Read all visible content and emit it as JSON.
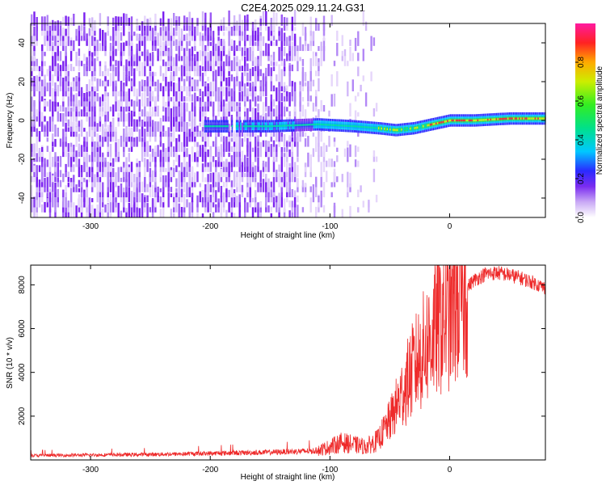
{
  "title": "C2E4.2025.029.11.24.G31",
  "chart_data": [
    {
      "type": "heatmap",
      "xlabel": "Height of straight line (km)",
      "ylabel": "Frequency (Hz)",
      "xlim": [
        -350,
        80
      ],
      "ylim": [
        -50,
        50
      ],
      "xticks": [
        -300,
        -200,
        -100,
        0
      ],
      "yticks": [
        -40,
        -20,
        0,
        20,
        40
      ],
      "colorbar": {
        "label": "Normalized spectral amplitude",
        "range": [
          0,
          1
        ],
        "ticks": [
          0.0,
          0.2,
          0.4,
          0.6,
          0.8
        ]
      },
      "ridge": {
        "description_points": [
          {
            "x": -200,
            "y": -3
          },
          {
            "x": -150,
            "y": -3
          },
          {
            "x": -110,
            "y": -2
          },
          {
            "x": -80,
            "y": -3
          },
          {
            "x": -60,
            "y": -4
          },
          {
            "x": -45,
            "y": -5
          },
          {
            "x": -30,
            "y": -4
          },
          {
            "x": -15,
            "y": -2
          },
          {
            "x": 0,
            "y": 0
          },
          {
            "x": 20,
            "y": 0
          },
          {
            "x": 50,
            "y": 1
          },
          {
            "x": 80,
            "y": 1
          }
        ]
      },
      "grid": false
    },
    {
      "type": "line",
      "xlabel": "Height of straight line (km)",
      "ylabel": "SNR (10 * v/v)",
      "xlim": [
        -350,
        80
      ],
      "ylim": [
        0,
        8900
      ],
      "xticks": [
        -300,
        -200,
        -100,
        0
      ],
      "yticks": [
        2000,
        4000,
        6000,
        8000
      ],
      "series": [
        {
          "color": "#ee2a2a",
          "envelope": [
            {
              "x": -350,
              "y": 200
            },
            {
              "x": -250,
              "y": 250
            },
            {
              "x": -200,
              "y": 300
            },
            {
              "x": -150,
              "y": 350
            },
            {
              "x": -110,
              "y": 420
            },
            {
              "x": -100,
              "y": 600
            },
            {
              "x": -90,
              "y": 800
            },
            {
              "x": -80,
              "y": 700
            },
            {
              "x": -70,
              "y": 600
            },
            {
              "x": -60,
              "y": 900
            },
            {
              "x": -50,
              "y": 1800
            },
            {
              "x": -40,
              "y": 3000
            },
            {
              "x": -30,
              "y": 4200
            },
            {
              "x": -20,
              "y": 5200
            },
            {
              "x": -10,
              "y": 6200
            },
            {
              "x": 0,
              "y": 6800
            },
            {
              "x": 10,
              "y": 7600
            },
            {
              "x": 20,
              "y": 8200
            },
            {
              "x": 30,
              "y": 8500
            },
            {
              "x": 40,
              "y": 8550
            },
            {
              "x": 50,
              "y": 8450
            },
            {
              "x": 60,
              "y": 8300
            },
            {
              "x": 70,
              "y": 8100
            },
            {
              "x": 80,
              "y": 7850
            }
          ]
        }
      ],
      "grid": false
    }
  ]
}
